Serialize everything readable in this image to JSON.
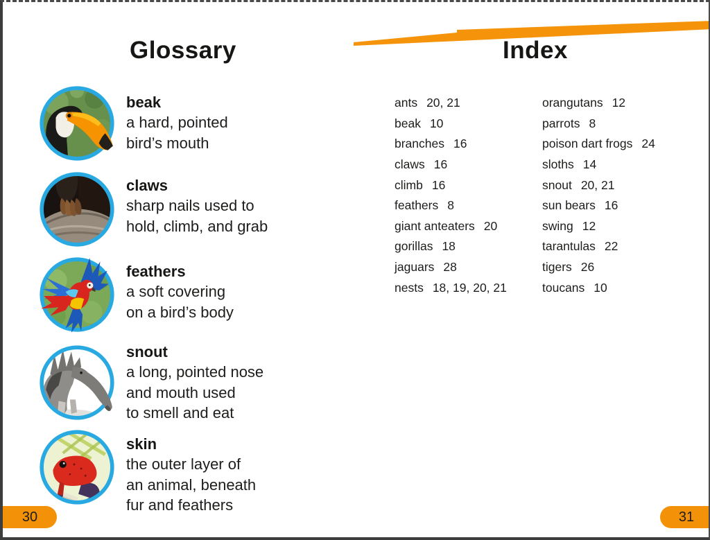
{
  "glossary": {
    "title": "Glossary",
    "page_number": "30",
    "entries": [
      {
        "term": "beak",
        "definition_lines": [
          "a hard, pointed",
          "bird’s mouth"
        ],
        "image": "toucan-photo",
        "art": "toucan"
      },
      {
        "term": "claws",
        "definition_lines": [
          "sharp nails used to",
          "hold, climb, and grab"
        ],
        "image": "claws-on-branch-photo",
        "art": "claws"
      },
      {
        "term": "feathers",
        "definition_lines": [
          "a soft covering",
          "on a bird’s body"
        ],
        "image": "flying-parrot-photo",
        "art": "parrot"
      },
      {
        "term": "snout",
        "definition_lines": [
          "a long, pointed nose",
          "and mouth used",
          "to smell and eat"
        ],
        "image": "anteater-photo",
        "art": "anteater"
      },
      {
        "term": "skin",
        "definition_lines": [
          "the outer layer of",
          "an animal, beneath",
          "fur and feathers"
        ],
        "image": "red-frog-photo",
        "art": "frog"
      }
    ]
  },
  "index": {
    "title": "Index",
    "page_number": "31",
    "columns": [
      [
        {
          "term": "ants",
          "pages": "20, 21"
        },
        {
          "term": "beak",
          "pages": "10"
        },
        {
          "term": "branches",
          "pages": "16"
        },
        {
          "term": "claws",
          "pages": "16"
        },
        {
          "term": "climb",
          "pages": "16"
        },
        {
          "term": "feathers",
          "pages": "8"
        },
        {
          "term": "giant anteaters",
          "pages": "20"
        },
        {
          "term": "gorillas",
          "pages": "18"
        },
        {
          "term": "jaguars",
          "pages": "28"
        },
        {
          "term": "nests",
          "pages": "18, 19, 20, 21"
        }
      ],
      [
        {
          "term": "orangutans",
          "pages": "12"
        },
        {
          "term": "parrots",
          "pages": "8"
        },
        {
          "term": "poison dart frogs",
          "pages": "24"
        },
        {
          "term": "sloths",
          "pages": "14"
        },
        {
          "term": "snout",
          "pages": "20, 21"
        },
        {
          "term": "sun bears",
          "pages": "16"
        },
        {
          "term": "swing",
          "pages": "12"
        },
        {
          "term": "tarantulas",
          "pages": "22"
        },
        {
          "term": "tigers",
          "pages": "26"
        },
        {
          "term": "toucans",
          "pages": "10"
        }
      ]
    ]
  },
  "colors": {
    "accent_orange": "#F39108",
    "circle_ring_blue": "#29A9E1",
    "text_dark": "#1D1D1B",
    "border_gray": "#3D3D3D"
  }
}
